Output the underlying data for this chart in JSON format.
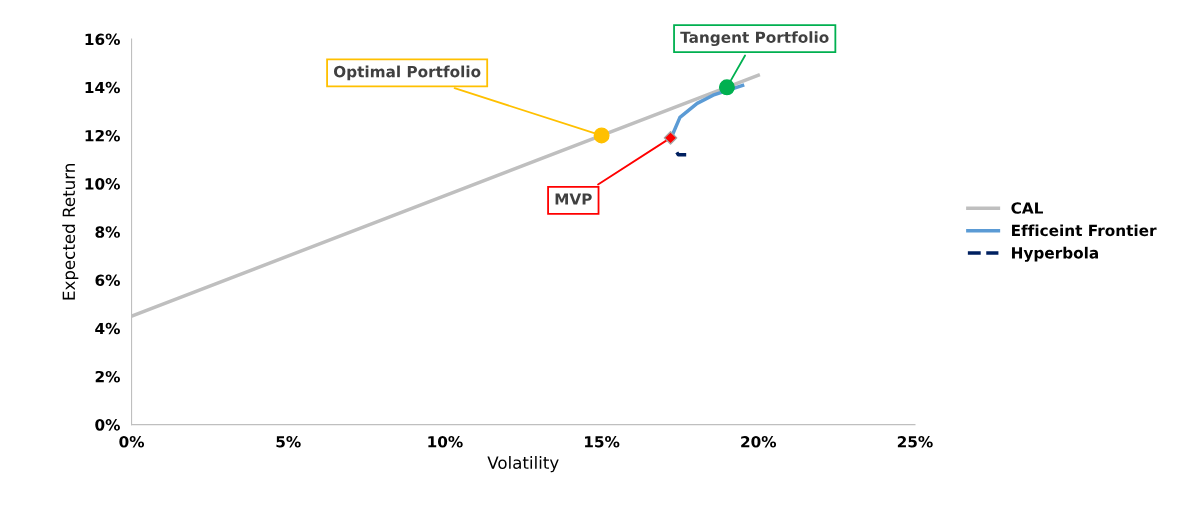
{
  "chart_data": {
    "type": "line",
    "xlabel": "Volatility",
    "ylabel": "Expected Return",
    "xlim": [
      0,
      25
    ],
    "xticks": [
      {
        "value": 0,
        "label": "0%"
      },
      {
        "value": 5,
        "label": "5%"
      },
      {
        "value": 10,
        "label": "10%"
      },
      {
        "value": 15,
        "label": "15%"
      },
      {
        "value": 20,
        "label": "20%"
      },
      {
        "value": 25,
        "label": "25%"
      }
    ],
    "ylim": [
      0,
      16
    ],
    "yticks": [
      {
        "value": 0,
        "label": "0%"
      },
      {
        "value": 2,
        "label": "2%"
      },
      {
        "value": 4,
        "label": "4%"
      },
      {
        "value": 6,
        "label": "6%"
      },
      {
        "value": 8,
        "label": "8%"
      },
      {
        "value": 10,
        "label": "10%"
      },
      {
        "value": 12,
        "label": "12%"
      },
      {
        "value": 14,
        "label": "14%"
      },
      {
        "value": 16,
        "label": "16%"
      }
    ],
    "grid": false,
    "legend": "right",
    "series": [
      {
        "name": "CAL",
        "color": "#bfbfbf",
        "x": [
          0,
          20
        ],
        "values": [
          4.5,
          14.5
        ]
      },
      {
        "name": "Efficeint Frontier",
        "color": "#5b9bd5",
        "x": [
          17.28,
          17.5,
          18.05,
          18.56,
          19.5
        ],
        "values": [
          12.08,
          12.75,
          13.33,
          13.67,
          14.08
        ]
      },
      {
        "name": "Hyperbola",
        "color": "#002060",
        "line_style": "dashed",
        "x": [
          17.4,
          17.45,
          17.7
        ],
        "values": [
          11.3,
          11.2,
          11.2
        ]
      },
      {
        "type": "scatter",
        "color": "#ffc000",
        "marker": "circle",
        "x": [
          15
        ],
        "values": [
          12
        ]
      },
      {
        "type": "scatter",
        "color": "#00b050",
        "marker": "circle",
        "x": [
          19
        ],
        "values": [
          14
        ]
      },
      {
        "type": "scatter",
        "color": "#ff0000",
        "marker": "diamond",
        "x": [
          17.2
        ],
        "values": [
          11.9
        ]
      }
    ],
    "annotations": [
      {
        "text": "Optimal Portfolio",
        "x": 15,
        "y": 12
      },
      {
        "text": "Tangent Portfolio",
        "x": 19,
        "y": 14
      },
      {
        "text": "MVP",
        "x": 17.2,
        "y": 11.9
      }
    ]
  }
}
